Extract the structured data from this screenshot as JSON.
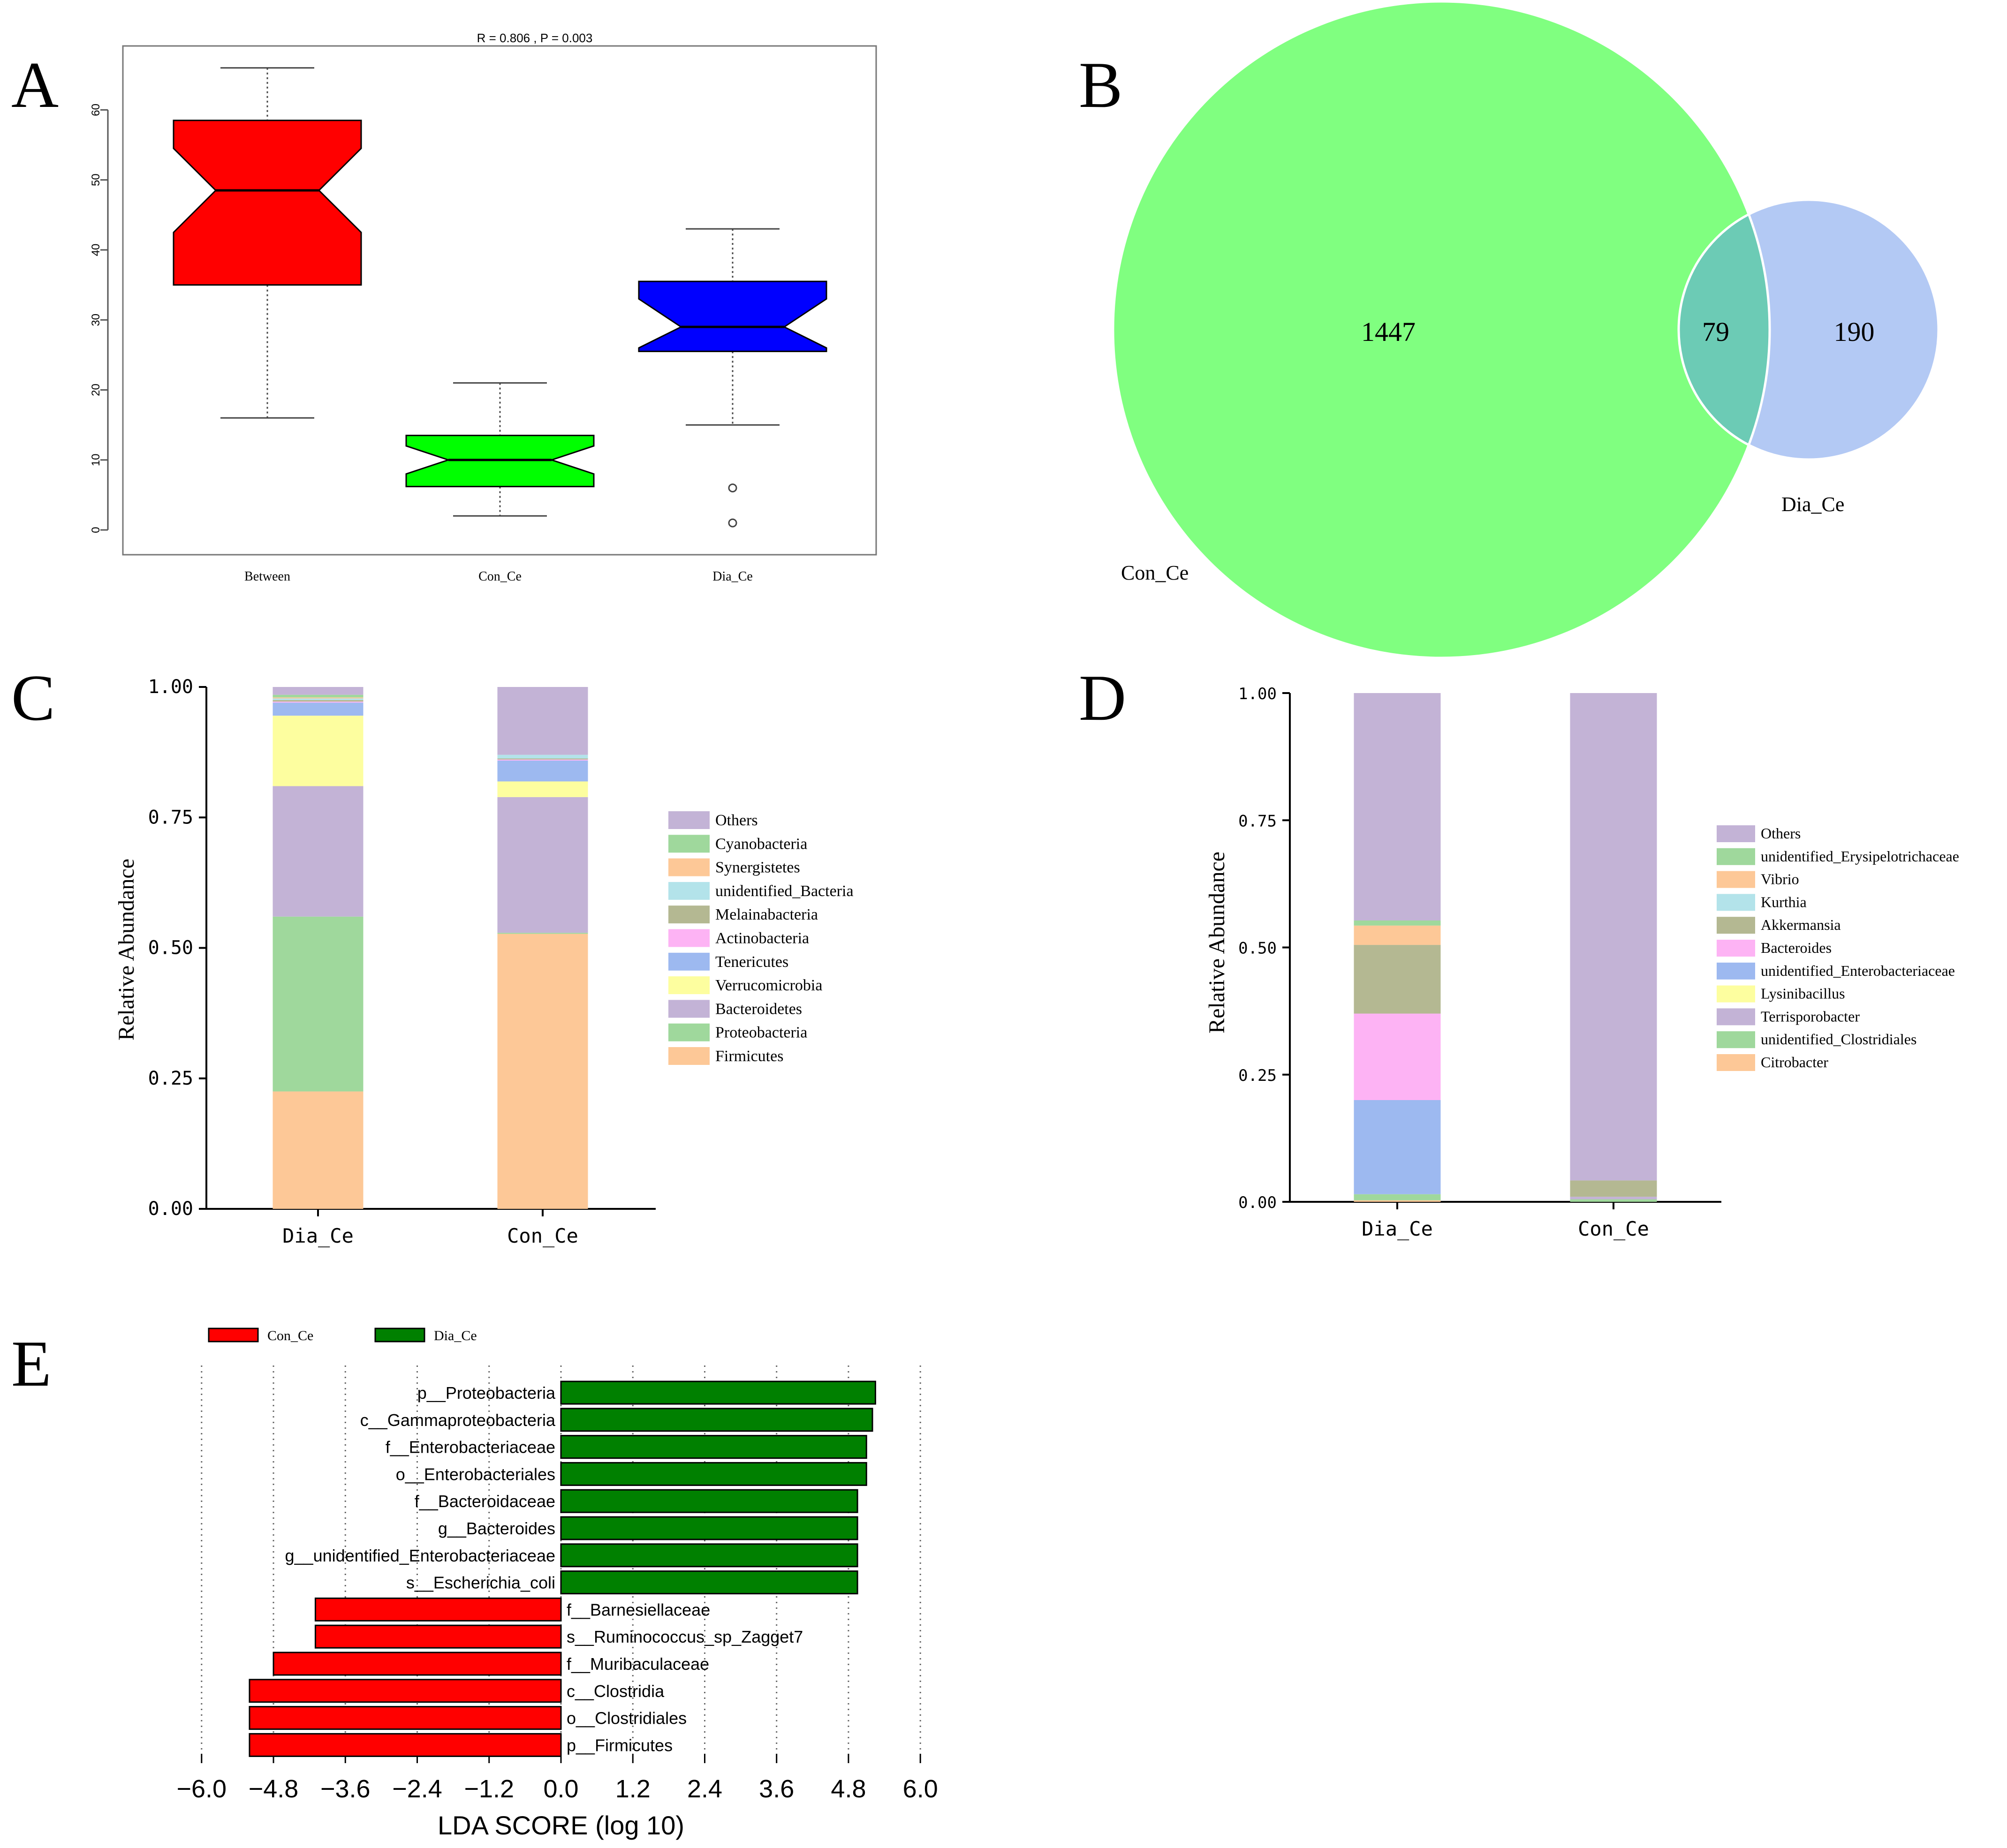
{
  "panels": {
    "A": {
      "letter": "A",
      "chart_data": {
        "type": "boxplot",
        "title": "R = 0.806 , P = 0.003",
        "xlabel": "",
        "ylabel": "",
        "ylim": [
          -2,
          69
        ],
        "yticks": [
          0,
          10,
          20,
          30,
          40,
          50,
          60
        ],
        "categories": [
          "Between",
          "Con_Ce",
          "Dia_Ce"
        ],
        "boxes": [
          {
            "name": "Between",
            "whisker_low": 16,
            "q1": 35,
            "median": 48.5,
            "q3": 58.5,
            "whisker_high": 66,
            "notch_low": 42.5,
            "notch_high": 54.5,
            "outliers": [],
            "color": "#ff0000"
          },
          {
            "name": "Con_Ce",
            "whisker_low": 2,
            "q1": 6.2,
            "median": 10,
            "q3": 13.5,
            "whisker_high": 21,
            "notch_low": 8,
            "notch_high": 12,
            "outliers": [],
            "color": "#00ff00"
          },
          {
            "name": "Dia_Ce",
            "whisker_low": 15,
            "q1": 25.5,
            "median": 29,
            "q3": 35.5,
            "whisker_high": 43,
            "notch_low": 26,
            "notch_high": 33,
            "outliers": [
              6,
              1
            ],
            "color": "#0000ff"
          }
        ]
      }
    },
    "B": {
      "letter": "B",
      "chart_data": {
        "type": "venn",
        "sets": [
          {
            "name": "Con_Ce",
            "unique": 1447,
            "color": "#80ff80"
          },
          {
            "name": "Dia_Ce",
            "unique": 190,
            "color": "#b3c9f4"
          }
        ],
        "overlap": 79,
        "overlap_color": "#6ccbb5"
      }
    },
    "C": {
      "letter": "C",
      "chart_data": {
        "type": "stacked_bar",
        "ylabel": "Relative Abundance",
        "xlabel": "",
        "ylim": [
          0,
          1
        ],
        "yticks": [
          "0.00",
          "0.25",
          "0.50",
          "0.75",
          "1.00"
        ],
        "categories": [
          "Dia_Ce",
          "Con_Ce"
        ],
        "series": [
          {
            "name": "Firmicutes",
            "color": "#fdc897",
            "values": [
              0.225,
              0.527
            ]
          },
          {
            "name": "Proteobacteria",
            "color": "#9fd89c",
            "values": [
              0.335,
              0.002
            ]
          },
          {
            "name": "Bacteroidetes",
            "color": "#c3b3d6",
            "values": [
              0.25,
              0.26
            ]
          },
          {
            "name": "Verrucomicrobia",
            "color": "#fdfe9f",
            "values": [
              0.135,
              0.03
            ]
          },
          {
            "name": "Tenericutes",
            "color": "#9db9f0",
            "values": [
              0.025,
              0.04
            ]
          },
          {
            "name": "Actinobacteria",
            "color": "#fdb3f4",
            "values": [
              0.002,
              0.002
            ]
          },
          {
            "name": "Melainabacteria",
            "color": "#b4b892",
            "values": [
              0.003,
              0.002
            ]
          },
          {
            "name": "unidentified_Bacteria",
            "color": "#b3e3ea",
            "values": [
              0.003,
              0.007
            ]
          },
          {
            "name": "Synergistetes",
            "color": "#fdc897",
            "values": [
              0.002,
              0.0
            ]
          },
          {
            "name": "Cyanobacteria",
            "color": "#9fd89c",
            "values": [
              0.005,
              0.0
            ]
          },
          {
            "name": "Others",
            "color": "#c3b3d6",
            "values": [
              0.015,
              0.13
            ]
          }
        ],
        "legend_order": [
          "Others",
          "Cyanobacteria",
          "Synergistetes",
          "unidentified_Bacteria",
          "Melainabacteria",
          "Actinobacteria",
          "Tenericutes",
          "Verrucomicrobia",
          "Bacteroidetes",
          "Proteobacteria",
          "Firmicutes"
        ]
      }
    },
    "D": {
      "letter": "D",
      "chart_data": {
        "type": "stacked_bar",
        "ylabel": "Relative Abundance",
        "xlabel": "",
        "ylim": [
          0,
          1
        ],
        "yticks": [
          "0.00",
          "0.25",
          "0.50",
          "0.75",
          "1.00"
        ],
        "categories": [
          "Dia_Ce",
          "Con_Ce"
        ],
        "series": [
          {
            "name": "Citrobacter",
            "color": "#fdc897",
            "values": [
              0.003,
              0.0
            ]
          },
          {
            "name": "unidentified_Clostridiales",
            "color": "#9fd89c",
            "values": [
              0.012,
              0.005
            ]
          },
          {
            "name": "Terrisporobacter",
            "color": "#c3b3d6",
            "values": [
              0.0,
              0.005
            ]
          },
          {
            "name": "Lysinibacillus",
            "color": "#fdfe9f",
            "values": [
              0.0,
              0.0
            ]
          },
          {
            "name": "unidentified_Enterobacteriaceae",
            "color": "#9db9f0",
            "values": [
              0.185,
              0.0
            ]
          },
          {
            "name": "Bacteroides",
            "color": "#fdb3f4",
            "values": [
              0.17,
              0.0
            ]
          },
          {
            "name": "Akkermansia",
            "color": "#b4b892",
            "values": [
              0.135,
              0.032
            ]
          },
          {
            "name": "Kurthia",
            "color": "#b3e3ea",
            "values": [
              0.0,
              0.0
            ]
          },
          {
            "name": "Vibrio",
            "color": "#fdc897",
            "values": [
              0.038,
              0.0
            ]
          },
          {
            "name": "unidentified_Erysipelotrichaceae",
            "color": "#9fd89c",
            "values": [
              0.01,
              0.0
            ]
          },
          {
            "name": "Others",
            "color": "#c3b3d6",
            "values": [
              0.447,
              0.958
            ]
          }
        ],
        "legend_order": [
          "Others",
          "unidentified_Erysipelotrichaceae",
          "Vibrio",
          "Kurthia",
          "Akkermansia",
          "Bacteroides",
          "unidentified_Enterobacteriaceae",
          "Lysinibacillus",
          "Terrisporobacter",
          "unidentified_Clostridiales",
          "Citrobacter"
        ]
      }
    },
    "E": {
      "letter": "E",
      "chart_data": {
        "type": "bar",
        "orientation": "horizontal",
        "xlabel": "LDA SCORE (log 10)",
        "xlim": [
          -6.0,
          6.0
        ],
        "xticks": [
          "−6.0",
          "−4.8",
          "−3.6",
          "−2.4",
          "−1.2",
          "0.0",
          "1.2",
          "2.4",
          "3.6",
          "4.8",
          "6.0"
        ],
        "legend": [
          {
            "name": "Con_Ce",
            "color": "#ff0000"
          },
          {
            "name": "Dia_Ce",
            "color": "#008000"
          }
        ],
        "categories": [
          "p__Proteobacteria",
          "c__Gammaproteobacteria",
          "f__Enterobacteriaceae",
          "o__Enterobacteriales",
          "f__Bacteroidaceae",
          "g__Bacteroides",
          "g__unidentified_Enterobacteriaceae",
          "s__Escherichia_coli",
          "f__Barnesiellaceae",
          "s__Ruminococcus_sp_Zagget7",
          "f__Muribaculaceae",
          "c__Clostridia",
          "o__Clostridiales",
          "p__Firmicutes"
        ],
        "values": [
          5.25,
          5.2,
          5.1,
          5.1,
          4.95,
          4.95,
          4.95,
          4.95,
          -4.1,
          -4.1,
          -4.8,
          -5.2,
          -5.2,
          -5.2
        ],
        "groups": [
          "Dia_Ce",
          "Dia_Ce",
          "Dia_Ce",
          "Dia_Ce",
          "Dia_Ce",
          "Dia_Ce",
          "Dia_Ce",
          "Dia_Ce",
          "Con_Ce",
          "Con_Ce",
          "Con_Ce",
          "Con_Ce",
          "Con_Ce",
          "Con_Ce"
        ]
      }
    }
  }
}
